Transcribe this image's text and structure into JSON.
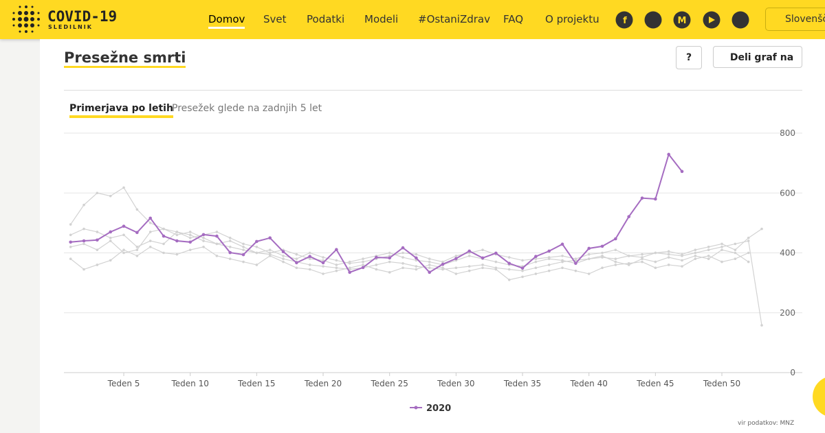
{
  "header": {
    "logo_title": "COVID-19",
    "logo_subtitle": "SLEDILNIK",
    "nav": [
      "Domov",
      "Svet",
      "Podatki",
      "Modeli",
      "#OstaniZdrav",
      "FAQ",
      "O projektu"
    ],
    "language": "Slovenšč"
  },
  "card": {
    "title": "Presežne smrti",
    "help_button": "?",
    "share_button": "Deli graf na",
    "tabs": [
      "Primerjava po letih",
      "Presežek glede na zadnjih 5 let"
    ],
    "source": "vir podatkov: MNZ"
  },
  "chart_data": {
    "type": "line",
    "x": [
      1,
      2,
      3,
      4,
      5,
      6,
      7,
      8,
      9,
      10,
      11,
      12,
      13,
      14,
      15,
      16,
      17,
      18,
      19,
      20,
      21,
      22,
      23,
      24,
      25,
      26,
      27,
      28,
      29,
      30,
      31,
      32,
      33,
      34,
      35,
      36,
      37,
      38,
      39,
      40,
      41,
      42,
      43,
      44,
      45,
      46,
      47,
      48,
      49,
      50,
      51,
      52,
      53
    ],
    "xlim": [
      0.5,
      53.5
    ],
    "xticks": [
      {
        "value": 5,
        "label": "Teden 5"
      },
      {
        "value": 10,
        "label": "Teden 10"
      },
      {
        "value": 15,
        "label": "Teden 15"
      },
      {
        "value": 20,
        "label": "Teden 20"
      },
      {
        "value": 25,
        "label": "Teden 25"
      },
      {
        "value": 30,
        "label": "Teden 30"
      },
      {
        "value": 35,
        "label": "Teden 35"
      },
      {
        "value": 40,
        "label": "Teden 40"
      },
      {
        "value": 45,
        "label": "Teden 45"
      },
      {
        "value": 50,
        "label": "Teden 50"
      }
    ],
    "ylim": [
      0,
      800
    ],
    "yticks": [
      0,
      200,
      400,
      600,
      800
    ],
    "grid": true,
    "series": [
      {
        "name": "2020",
        "color": "#a56cc1",
        "values": [
          436,
          440,
          443,
          470,
          489,
          468,
          516,
          456,
          440,
          436,
          461,
          456,
          401,
          394,
          438,
          450,
          404,
          367,
          388,
          367,
          411,
          335,
          351,
          385,
          383,
          417,
          383,
          335,
          362,
          381,
          406,
          383,
          399,
          365,
          349,
          388,
          406,
          429,
          365,
          415,
          422,
          447,
          521,
          583,
          580,
          729,
          672,
          null,
          null,
          null,
          null,
          null,
          null
        ]
      },
      {
        "color": "#d2d2d2",
        "values": [
          495,
          560,
          600,
          590,
          618,
          545,
          500,
          480,
          470,
          460,
          440,
          430,
          420,
          410,
          400,
          395,
          380,
          370,
          360,
          355,
          350,
          345,
          350,
          360,
          370,
          365,
          355,
          350,
          345,
          350,
          355,
          360,
          350,
          345,
          340,
          350,
          360,
          370,
          375,
          380,
          385,
          380,
          390,
          395,
          400,
          395,
          390,
          400,
          410,
          420,
          430,
          440,
          158
        ]
      },
      {
        "color": "#d2d2d2",
        "values": [
          380,
          345,
          360,
          375,
          410,
          390,
          420,
          400,
          395,
          410,
          420,
          390,
          380,
          370,
          360,
          390,
          370,
          350,
          345,
          330,
          340,
          350,
          360,
          345,
          335,
          350,
          345,
          360,
          350,
          330,
          340,
          350,
          345,
          310,
          320,
          330,
          340,
          350,
          340,
          330,
          350,
          360,
          365,
          370,
          350,
          360,
          355,
          380,
          390,
          370,
          380,
          400,
          null
        ]
      },
      {
        "color": "#d2d2d2",
        "values": [
          420,
          430,
          410,
          440,
          400,
          410,
          470,
          480,
          460,
          470,
          450,
          430,
          440,
          420,
          400,
          410,
          390,
          380,
          400,
          385,
          375,
          365,
          370,
          380,
          390,
          400,
          395,
          380,
          370,
          390,
          400,
          410,
          395,
          385,
          375,
          380,
          385,
          390,
          380,
          395,
          400,
          410,
          390,
          385,
          400,
          405,
          395,
          410,
          420,
          430,
          410,
          450,
          480
        ]
      },
      {
        "color": "#d2d2d2",
        "values": [
          460,
          480,
          470,
          450,
          460,
          420,
          440,
          430,
          470,
          450,
          460,
          470,
          450,
          430,
          420,
          400,
          410,
          395,
          380,
          375,
          360,
          370,
          380,
          390,
          400,
          385,
          375,
          370,
          360,
          375,
          390,
          380,
          370,
          360,
          355,
          370,
          380,
          375,
          365,
          380,
          390,
          370,
          360,
          380,
          370,
          385,
          375,
          390,
          380,
          410,
          400,
          370,
          null
        ]
      }
    ]
  }
}
